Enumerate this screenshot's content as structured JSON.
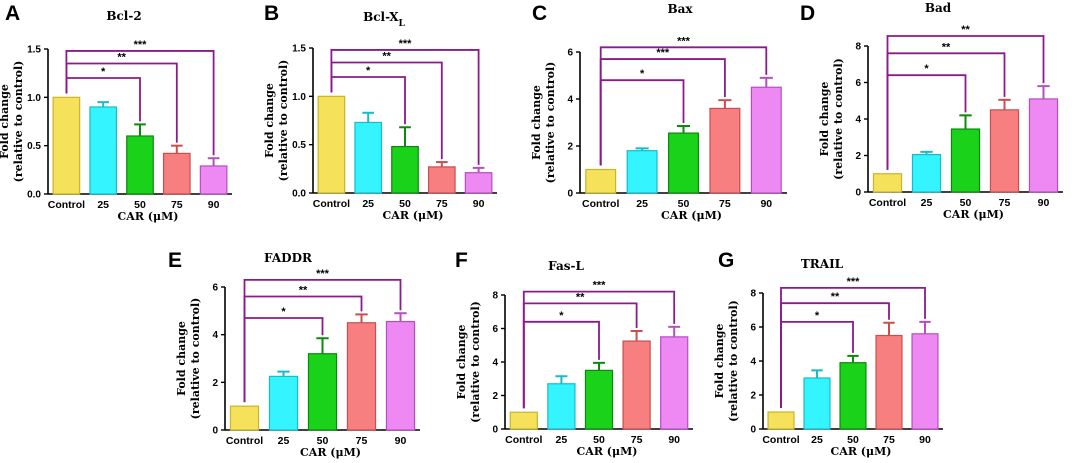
{
  "figure": {
    "xlabel": "CAR (μM)",
    "ylabel_line1": "Fold change",
    "ylabel_line2": "(relative to control)",
    "categories": [
      "Control",
      "25",
      "50",
      "75",
      "90"
    ],
    "bar_colors": [
      "#f5e15a",
      "#34f4ff",
      "#19d219",
      "#f77f7f",
      "#ee88f2"
    ],
    "bar_edge_colors": [
      "#c9b42a",
      "#16bcc9",
      "#0a8a0a",
      "#c94e4e",
      "#b54fc0"
    ],
    "bracket_color": "#8b1a8b",
    "bracket_stars": [
      "*",
      "**",
      "***"
    ]
  },
  "chart_data": [
    {
      "letter": "A",
      "type": "bar",
      "title": "Bcl-2",
      "title_sub": "",
      "yticks": [
        0.0,
        0.5,
        1.0,
        1.5
      ],
      "ytick_labels": [
        "0.0",
        "0.5",
        "1.0",
        "1.5"
      ],
      "ylim": [
        0,
        1.5
      ],
      "values": [
        1.0,
        0.9,
        0.6,
        0.42,
        0.29
      ],
      "errors": [
        0.0,
        0.05,
        0.12,
        0.08,
        0.08
      ],
      "brackets": [
        {
          "to": "50",
          "stars": "*",
          "y": 1.2
        },
        {
          "to": "75",
          "stars": "**",
          "y": 1.35
        },
        {
          "to": "90",
          "stars": "***",
          "y": 1.48
        }
      ]
    },
    {
      "letter": "B",
      "type": "bar",
      "title": "Bcl-X",
      "title_sub": "L",
      "yticks": [
        0.0,
        0.5,
        1.0,
        1.5
      ],
      "ytick_labels": [
        "0.0",
        "0.5",
        "1.0",
        "1.5"
      ],
      "ylim": [
        0,
        1.5
      ],
      "values": [
        1.0,
        0.73,
        0.48,
        0.27,
        0.21
      ],
      "errors": [
        0.0,
        0.1,
        0.2,
        0.05,
        0.05
      ],
      "brackets": [
        {
          "to": "50",
          "stars": "*",
          "y": 1.2
        },
        {
          "to": "75",
          "stars": "**",
          "y": 1.35
        },
        {
          "to": "90",
          "stars": "***",
          "y": 1.48
        }
      ]
    },
    {
      "letter": "C",
      "type": "bar",
      "title": "Bax",
      "title_sub": "",
      "yticks": [
        0,
        2,
        4,
        6
      ],
      "ytick_labels": [
        "0",
        "2",
        "4",
        "6"
      ],
      "ylim": [
        0,
        6
      ],
      "values": [
        1.0,
        1.8,
        2.55,
        3.6,
        4.5
      ],
      "errors": [
        0.0,
        0.1,
        0.3,
        0.35,
        0.4
      ],
      "brackets": [
        {
          "to": "50",
          "stars": "*",
          "y": 4.8
        },
        {
          "to": "75",
          "stars": "***",
          "y": 5.7
        },
        {
          "to": "90",
          "stars": "***",
          "y": 6.2
        }
      ]
    },
    {
      "letter": "D",
      "type": "bar",
      "title": "Bad",
      "title_sub": "",
      "yticks": [
        0,
        2,
        4,
        6,
        8
      ],
      "ytick_labels": [
        "0",
        "2",
        "4",
        "6",
        "8"
      ],
      "ylim": [
        0,
        8
      ],
      "values": [
        1.0,
        2.05,
        3.45,
        4.5,
        5.1
      ],
      "errors": [
        0.0,
        0.15,
        0.75,
        0.55,
        0.7
      ],
      "brackets": [
        {
          "to": "50",
          "stars": "*",
          "y": 6.4
        },
        {
          "to": "75",
          "stars": "**",
          "y": 7.6
        },
        {
          "to": "90",
          "stars": "**",
          "y": 8.7
        }
      ]
    },
    {
      "letter": "E",
      "type": "bar",
      "title": "FADDR",
      "title_sub": "",
      "yticks": [
        0,
        2,
        4,
        6
      ],
      "ytick_labels": [
        "0",
        "2",
        "4",
        "6"
      ],
      "ylim": [
        0,
        6
      ],
      "values": [
        1.0,
        2.25,
        3.2,
        4.5,
        4.55
      ],
      "errors": [
        0.0,
        0.2,
        0.65,
        0.35,
        0.35
      ],
      "brackets": [
        {
          "to": "50",
          "stars": "*",
          "y": 4.7
        },
        {
          "to": "75",
          "stars": "**",
          "y": 5.6
        },
        {
          "to": "90",
          "stars": "***",
          "y": 6.3
        }
      ]
    },
    {
      "letter": "F",
      "type": "bar",
      "title": "Fas-L",
      "title_sub": "",
      "yticks": [
        0,
        2,
        4,
        6,
        8
      ],
      "ytick_labels": [
        "0",
        "2",
        "4",
        "6",
        "8"
      ],
      "ylim": [
        0,
        8
      ],
      "values": [
        1.0,
        2.7,
        3.5,
        5.25,
        5.5
      ],
      "errors": [
        0.0,
        0.45,
        0.45,
        0.6,
        0.6
      ],
      "brackets": [
        {
          "to": "50",
          "stars": "*",
          "y": 6.4
        },
        {
          "to": "75",
          "stars": "**",
          "y": 7.5
        },
        {
          "to": "90",
          "stars": "***",
          "y": 8.2
        }
      ]
    },
    {
      "letter": "G",
      "type": "bar",
      "title": "TRAIL",
      "title_sub": "",
      "yticks": [
        0,
        2,
        4,
        6,
        8
      ],
      "ytick_labels": [
        "0",
        "2",
        "4",
        "6",
        "8"
      ],
      "ylim": [
        0,
        8
      ],
      "values": [
        1.0,
        3.0,
        3.9,
        5.5,
        5.6
      ],
      "errors": [
        0.0,
        0.45,
        0.4,
        0.75,
        0.7
      ],
      "brackets": [
        {
          "to": "50",
          "stars": "*",
          "y": 6.3
        },
        {
          "to": "75",
          "stars": "**",
          "y": 7.4
        },
        {
          "to": "90",
          "stars": "***",
          "y": 8.3
        }
      ]
    }
  ]
}
